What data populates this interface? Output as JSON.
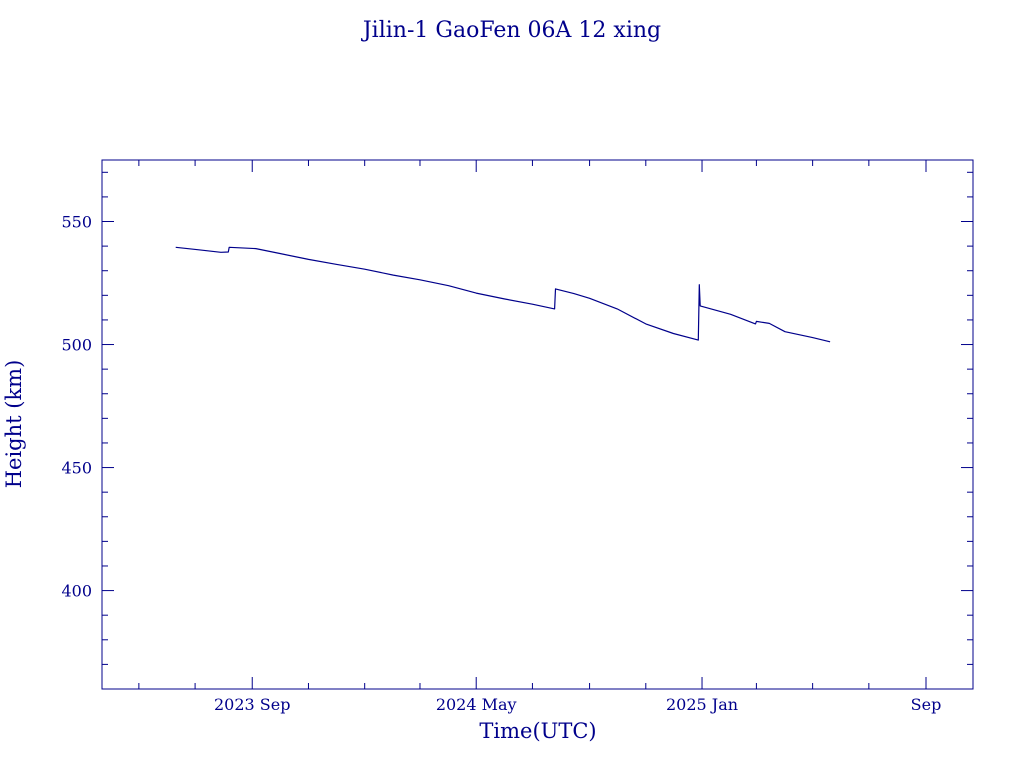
{
  "chart_data": {
    "type": "line",
    "title": "Jilin-1 GaoFen 06A 12 xing",
    "xlabel": "Time(UTC)",
    "ylabel": "Height (km)",
    "ylim": [
      360,
      575
    ],
    "xlim": [
      "2023-03-22",
      "2025-10-22"
    ],
    "grid": false,
    "x_ticks": [
      {
        "date": "2023-09-01",
        "label": "2023 Sep"
      },
      {
        "date": "2024-05-01",
        "label": "2024 May"
      },
      {
        "date": "2025-01-01",
        "label": "2025 Jan"
      },
      {
        "date": "2025-09-01",
        "label": "Sep"
      }
    ],
    "x_minor_ticks": [
      "2023-05-01",
      "2023-07-01",
      "2023-11-01",
      "2024-01-01",
      "2024-03-01",
      "2024-07-01",
      "2024-09-01",
      "2024-11-01",
      "2025-03-01",
      "2025-05-01",
      "2025-07-01"
    ],
    "y_ticks": [
      400,
      450,
      500,
      550
    ],
    "y_minor_step": 10,
    "series": [
      {
        "name": "",
        "color": "#00008b",
        "points": [
          [
            "2023-06-10",
            539.5
          ],
          [
            "2023-07-05",
            538.5
          ],
          [
            "2023-07-29",
            537.5
          ],
          [
            "2023-08-06",
            537.6
          ],
          [
            "2023-08-07",
            539.5
          ],
          [
            "2023-09-05",
            539.0
          ],
          [
            "2023-10-01",
            537.0
          ],
          [
            "2023-11-01",
            534.6
          ],
          [
            "2023-12-01",
            532.6
          ],
          [
            "2024-01-01",
            530.6
          ],
          [
            "2024-02-01",
            528.2
          ],
          [
            "2024-03-01",
            526.3
          ],
          [
            "2024-04-01",
            523.9
          ],
          [
            "2024-05-01",
            520.9
          ],
          [
            "2024-06-01",
            518.5
          ],
          [
            "2024-07-01",
            516.4
          ],
          [
            "2024-07-25",
            514.5
          ],
          [
            "2024-07-26",
            522.6
          ],
          [
            "2024-08-15",
            520.7
          ],
          [
            "2024-09-01",
            518.8
          ],
          [
            "2024-10-01",
            514.5
          ],
          [
            "2024-11-01",
            508.4
          ],
          [
            "2024-12-01",
            504.5
          ],
          [
            "2024-12-28",
            501.8
          ],
          [
            "2024-12-29",
            524.3
          ],
          [
            "2024-12-30",
            515.7
          ],
          [
            "2025-02-01",
            512.3
          ],
          [
            "2025-02-28",
            508.4
          ],
          [
            "2025-03-01",
            509.4
          ],
          [
            "2025-03-15",
            508.6
          ],
          [
            "2025-04-01",
            505.2
          ],
          [
            "2025-05-01",
            502.8
          ],
          [
            "2025-05-20",
            501.1
          ]
        ]
      }
    ]
  }
}
